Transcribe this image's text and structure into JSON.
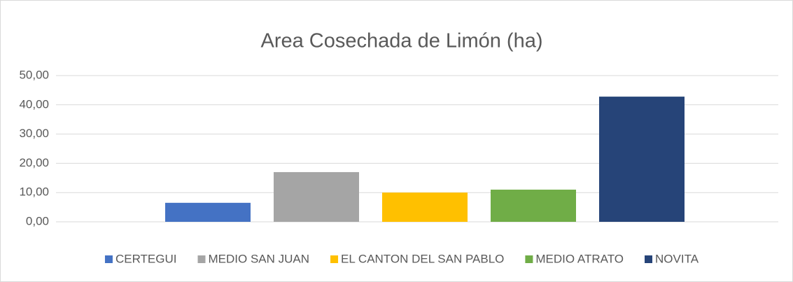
{
  "chart_data": {
    "type": "bar",
    "title": "Area Cosechada de Limón (ha)",
    "categories": [
      null
    ],
    "series": [
      {
        "name": "CERTEGUI",
        "color": "#4472c4",
        "values": [
          6.5
        ]
      },
      {
        "name": "MEDIO SAN JUAN",
        "color": "#a5a5a5",
        "values": [
          17
        ]
      },
      {
        "name": "EL CANTON DEL SAN PABLO",
        "color": "#ffc000",
        "values": [
          10
        ]
      },
      {
        "name": "MEDIO ATRATO",
        "color": "#70ad47",
        "values": [
          11
        ]
      },
      {
        "name": "NOVITA",
        "color": "#264478",
        "values": [
          42.8
        ]
      }
    ],
    "ylim": [
      0,
      50
    ],
    "yticks": [
      {
        "value": 0,
        "label": "0,00"
      },
      {
        "value": 10,
        "label": "10,00"
      },
      {
        "value": 20,
        "label": "20,00"
      },
      {
        "value": 30,
        "label": "30,00"
      },
      {
        "value": 40,
        "label": "40,00"
      },
      {
        "value": 50,
        "label": "50,00"
      }
    ],
    "grid": true,
    "legend": "bottom"
  }
}
